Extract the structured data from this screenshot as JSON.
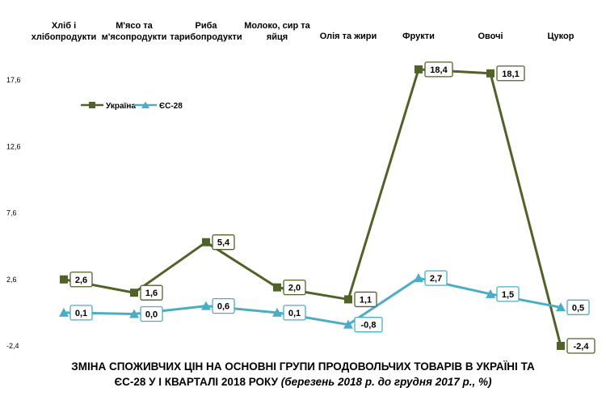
{
  "chart_data": {
    "type": "line",
    "title_line1": "ЗМІНА СПОЖИВЧИХ ЦІН НА ОСНОВНІ ГРУПИ ПРОДОВОЛЬЧИХ ТОВАРІВ В УКРАЇНІ ТА",
    "title_line2": "ЄС-28 У І КВАРТАЛІ 2018 РОКУ",
    "subtitle": "(березень 2018 р. до грудня 2017 р., %)",
    "categories": [
      [
        "Хліб і",
        "хлібопродукти"
      ],
      [
        "М'ясо та",
        "м'ясопродукти"
      ],
      [
        "Риба",
        "тарибопродукти"
      ],
      [
        "Молоко, сир та",
        "яйця"
      ],
      [
        "Олія та жири"
      ],
      [
        "Фрукти"
      ],
      [
        "Овочі"
      ],
      [
        "Цукор"
      ]
    ],
    "y_ticks": [
      "17,6",
      "12,6",
      "7,6",
      "2,6",
      "-2,4"
    ],
    "ylim": [
      -2.4,
      17.6
    ],
    "legend_position": "top-left",
    "series": [
      {
        "name": "Україна",
        "color": "#4f6228",
        "marker": "square",
        "values": [
          2.6,
          1.6,
          5.4,
          2.0,
          1.1,
          18.4,
          18.1,
          -2.4
        ],
        "labels": [
          "2,6",
          "1,6",
          "5,4",
          "2,0",
          "1,1",
          "18,4",
          "18,1",
          "-2,4"
        ]
      },
      {
        "name": "ЄС-28",
        "color": "#4bacc6",
        "marker": "triangle",
        "values": [
          0.1,
          0.0,
          0.6,
          0.1,
          -0.8,
          2.7,
          1.5,
          0.5
        ],
        "labels": [
          "0,1",
          "0,0",
          "0,6",
          "0,1",
          "-0,8",
          "2,7",
          "1,5",
          "0,5"
        ]
      }
    ]
  }
}
